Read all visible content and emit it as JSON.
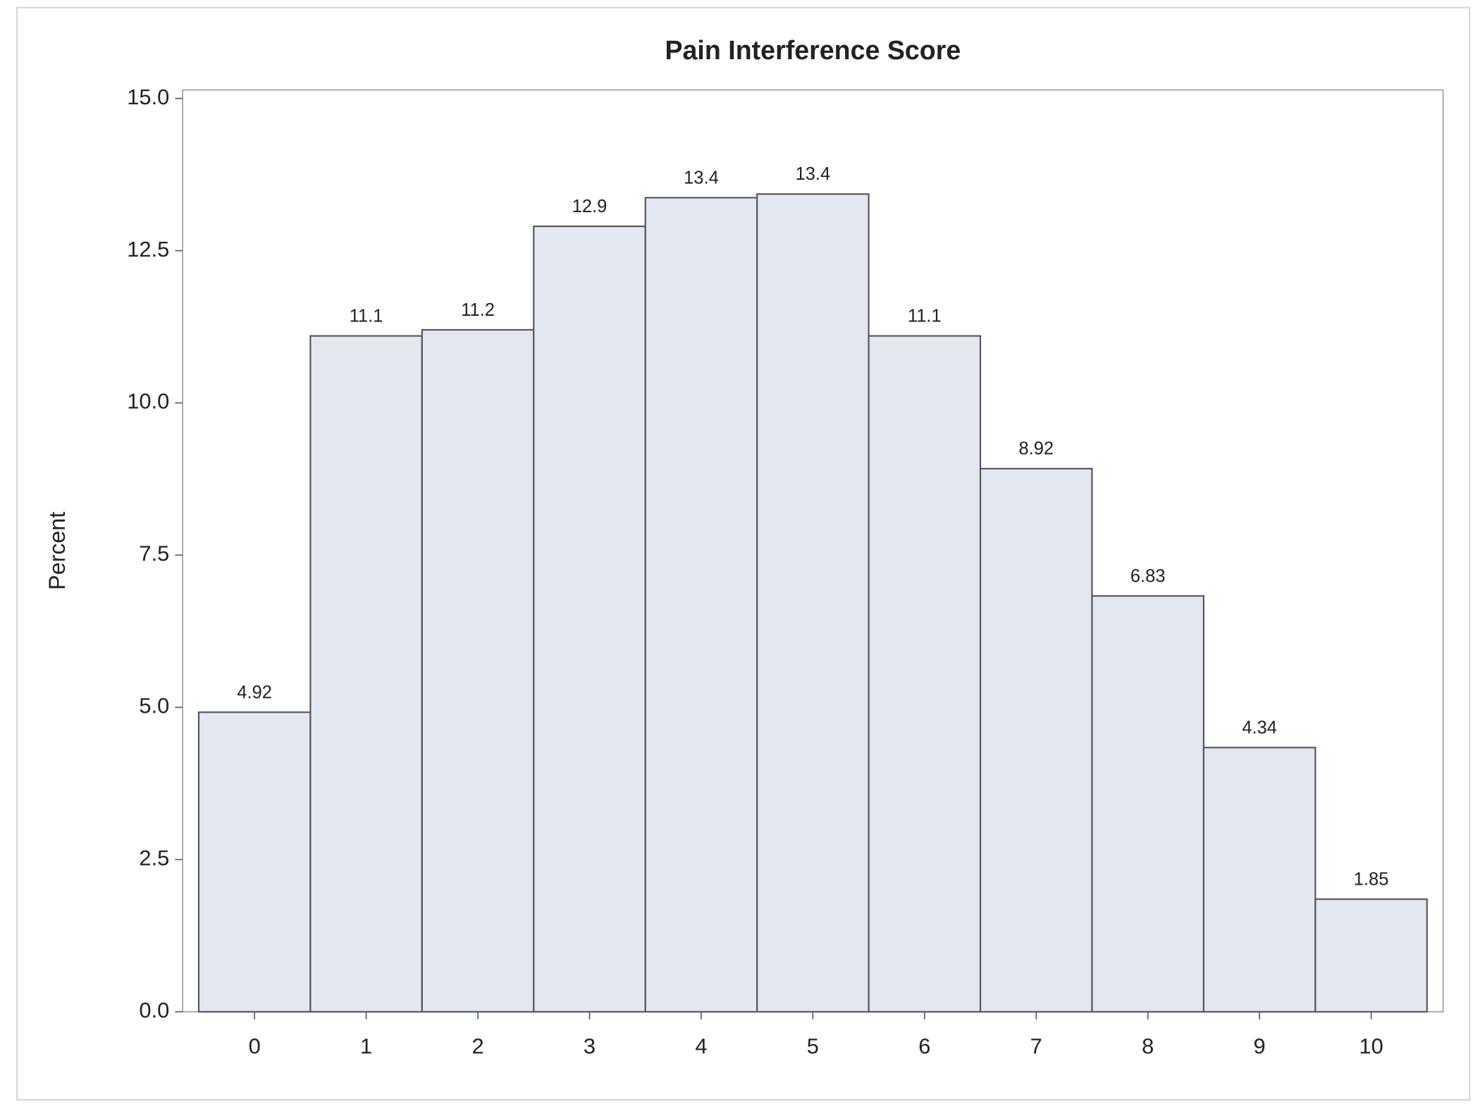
{
  "chart_data": {
    "type": "bar",
    "title": "Pain Interference Score",
    "y_label": "Percent",
    "categories": [
      "0",
      "1",
      "2",
      "3",
      "4",
      "5",
      "6",
      "7",
      "8",
      "9",
      "10"
    ],
    "values": [
      4.92,
      11.1,
      11.2,
      12.9,
      13.37,
      13.43,
      11.1,
      8.92,
      6.83,
      4.34,
      1.85
    ],
    "value_labels": [
      "4.92",
      "11.1",
      "11.2",
      "12.9",
      "13.4",
      "13.4",
      "11.1",
      "8.92",
      "6.83",
      "4.34",
      "1.85"
    ],
    "color": "#e3e7f0",
    "ylim": [
      0,
      15
    ],
    "yticks": [
      {
        "value": 0,
        "label": "0.0"
      },
      2.5,
      {
        "value": 5,
        "label": "5.0"
      },
      7.5,
      {
        "value": 10,
        "label": "10.0"
      },
      12.5,
      {
        "value": 15,
        "label": "15.0"
      }
    ],
    "grid": false
  }
}
